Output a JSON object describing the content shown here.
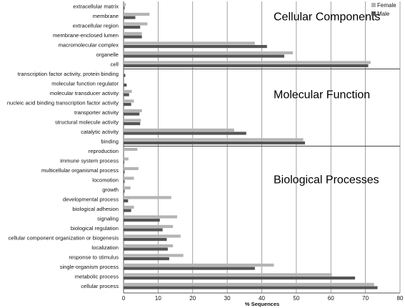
{
  "chart_data": {
    "type": "bar",
    "orientation": "horizontal",
    "xlabel": "% Sequences",
    "xlim": [
      0,
      80
    ],
    "xticks": [
      0,
      10,
      20,
      30,
      40,
      50,
      60,
      70,
      80
    ],
    "grid": true,
    "legend_position": "top-right",
    "series": [
      {
        "name": "Female",
        "color": "#b4b4b4"
      },
      {
        "name": "Male",
        "color": "#555555"
      }
    ],
    "groups": [
      {
        "title": "Cellular Components",
        "categories": [
          {
            "label": "extracellular matrix",
            "female": 0.6,
            "male": 0.3
          },
          {
            "label": "membrane",
            "female": 7.5,
            "male": 3.4
          },
          {
            "label": "extracellular region",
            "female": 6.9,
            "male": 4.8
          },
          {
            "label": "membrane-enclosed lumen",
            "female": 5.3,
            "male": 5.3
          },
          {
            "label": "macromolecular complex",
            "female": 38.0,
            "male": 41.5
          },
          {
            "label": "organelle",
            "female": 49.0,
            "male": 46.5
          },
          {
            "label": "cell",
            "female": 71.5,
            "male": 70.8
          }
        ]
      },
      {
        "title": "Molecular Function",
        "categories": [
          {
            "label": "transcription factor activity, protein binding",
            "female": 0.0,
            "male": 0.5
          },
          {
            "label": "molecular function regulator",
            "female": 0.0,
            "male": 0.9
          },
          {
            "label": "molecular transducer activity",
            "female": 2.4,
            "male": 1.6
          },
          {
            "label": "nucleic acid binding transcription factor activity",
            "female": 3.0,
            "male": 2.2
          },
          {
            "label": "transporter activity",
            "female": 5.3,
            "male": 4.6
          },
          {
            "label": "structural molecule activity",
            "female": 5.0,
            "male": 4.8
          },
          {
            "label": "catalytic activity",
            "female": 32.0,
            "male": 35.5
          },
          {
            "label": "binding",
            "female": 52.0,
            "male": 52.5
          }
        ]
      },
      {
        "title": "Biological Processes",
        "categories": [
          {
            "label": "reproduction",
            "female": 4.0,
            "male": 0.0
          },
          {
            "label": "immune system process",
            "female": 1.4,
            "male": 0.2
          },
          {
            "label": "multicellular organismal process",
            "female": 4.3,
            "male": 0.3
          },
          {
            "label": "locomotion",
            "female": 3.0,
            "male": 0.3
          },
          {
            "label": "growth",
            "female": 2.0,
            "male": 0.3
          },
          {
            "label": "developmental process",
            "female": 13.8,
            "male": 1.3
          },
          {
            "label": "biological adhesion",
            "female": 3.0,
            "male": 2.2
          },
          {
            "label": "signaling",
            "female": 15.5,
            "male": 10.5
          },
          {
            "label": "biological regulation",
            "female": 14.3,
            "male": 11.3
          },
          {
            "label": "cellular component organization or biogenesis",
            "female": 16.5,
            "male": 12.5
          },
          {
            "label": "localization",
            "female": 14.3,
            "male": 12.8
          },
          {
            "label": "response to stimulus",
            "female": 17.3,
            "male": 13.2
          },
          {
            "label": "single-organism process",
            "female": 43.5,
            "male": 38.0
          },
          {
            "label": "metabolic process",
            "female": 60.3,
            "male": 67.0
          },
          {
            "label": "cellular process",
            "female": 72.5,
            "male": 73.5
          }
        ]
      }
    ]
  }
}
